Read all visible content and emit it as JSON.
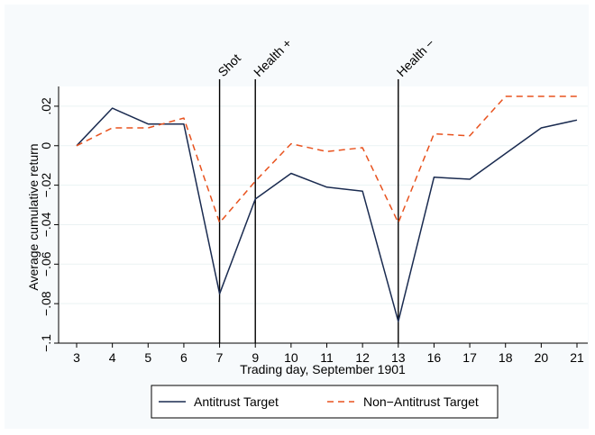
{
  "chart_data": {
    "type": "line",
    "title": "",
    "xlabel": "Trading day, September 1901",
    "ylabel": "Average cumulative return",
    "categories": [
      "3",
      "4",
      "5",
      "6",
      "7",
      "9",
      "10",
      "11",
      "12",
      "13",
      "16",
      "17",
      "18",
      "20",
      "21"
    ],
    "ylim": [
      -0.1,
      0.03
    ],
    "yticks": [
      -0.1,
      -0.08,
      -0.06,
      -0.04,
      -0.02,
      0,
      0.02
    ],
    "ytick_labels": [
      "−.1",
      "−.08",
      "−.06",
      "−.04",
      "−.02",
      "0",
      ".02"
    ],
    "grid": true,
    "legend_position": "bottom",
    "series": [
      {
        "name": "Antitrust Target",
        "color": "#1a2b50",
        "dash": "solid",
        "values": [
          0.0,
          0.019,
          0.011,
          0.011,
          -0.075,
          -0.027,
          -0.014,
          -0.021,
          -0.023,
          -0.089,
          -0.016,
          -0.017,
          -0.004,
          0.009,
          0.013
        ]
      },
      {
        "name": "Non−Antitrust Target",
        "color": "#e8521e",
        "dash": "dashed",
        "values": [
          0.0,
          0.009,
          0.009,
          0.014,
          -0.039,
          -0.018,
          0.001,
          -0.003,
          -0.001,
          -0.039,
          0.006,
          0.005,
          0.025,
          0.025,
          0.025
        ]
      }
    ],
    "events": [
      {
        "label": "Shot",
        "at": "7"
      },
      {
        "label": "Health +",
        "at": "9"
      },
      {
        "label": "Health −",
        "at": "13"
      }
    ]
  }
}
